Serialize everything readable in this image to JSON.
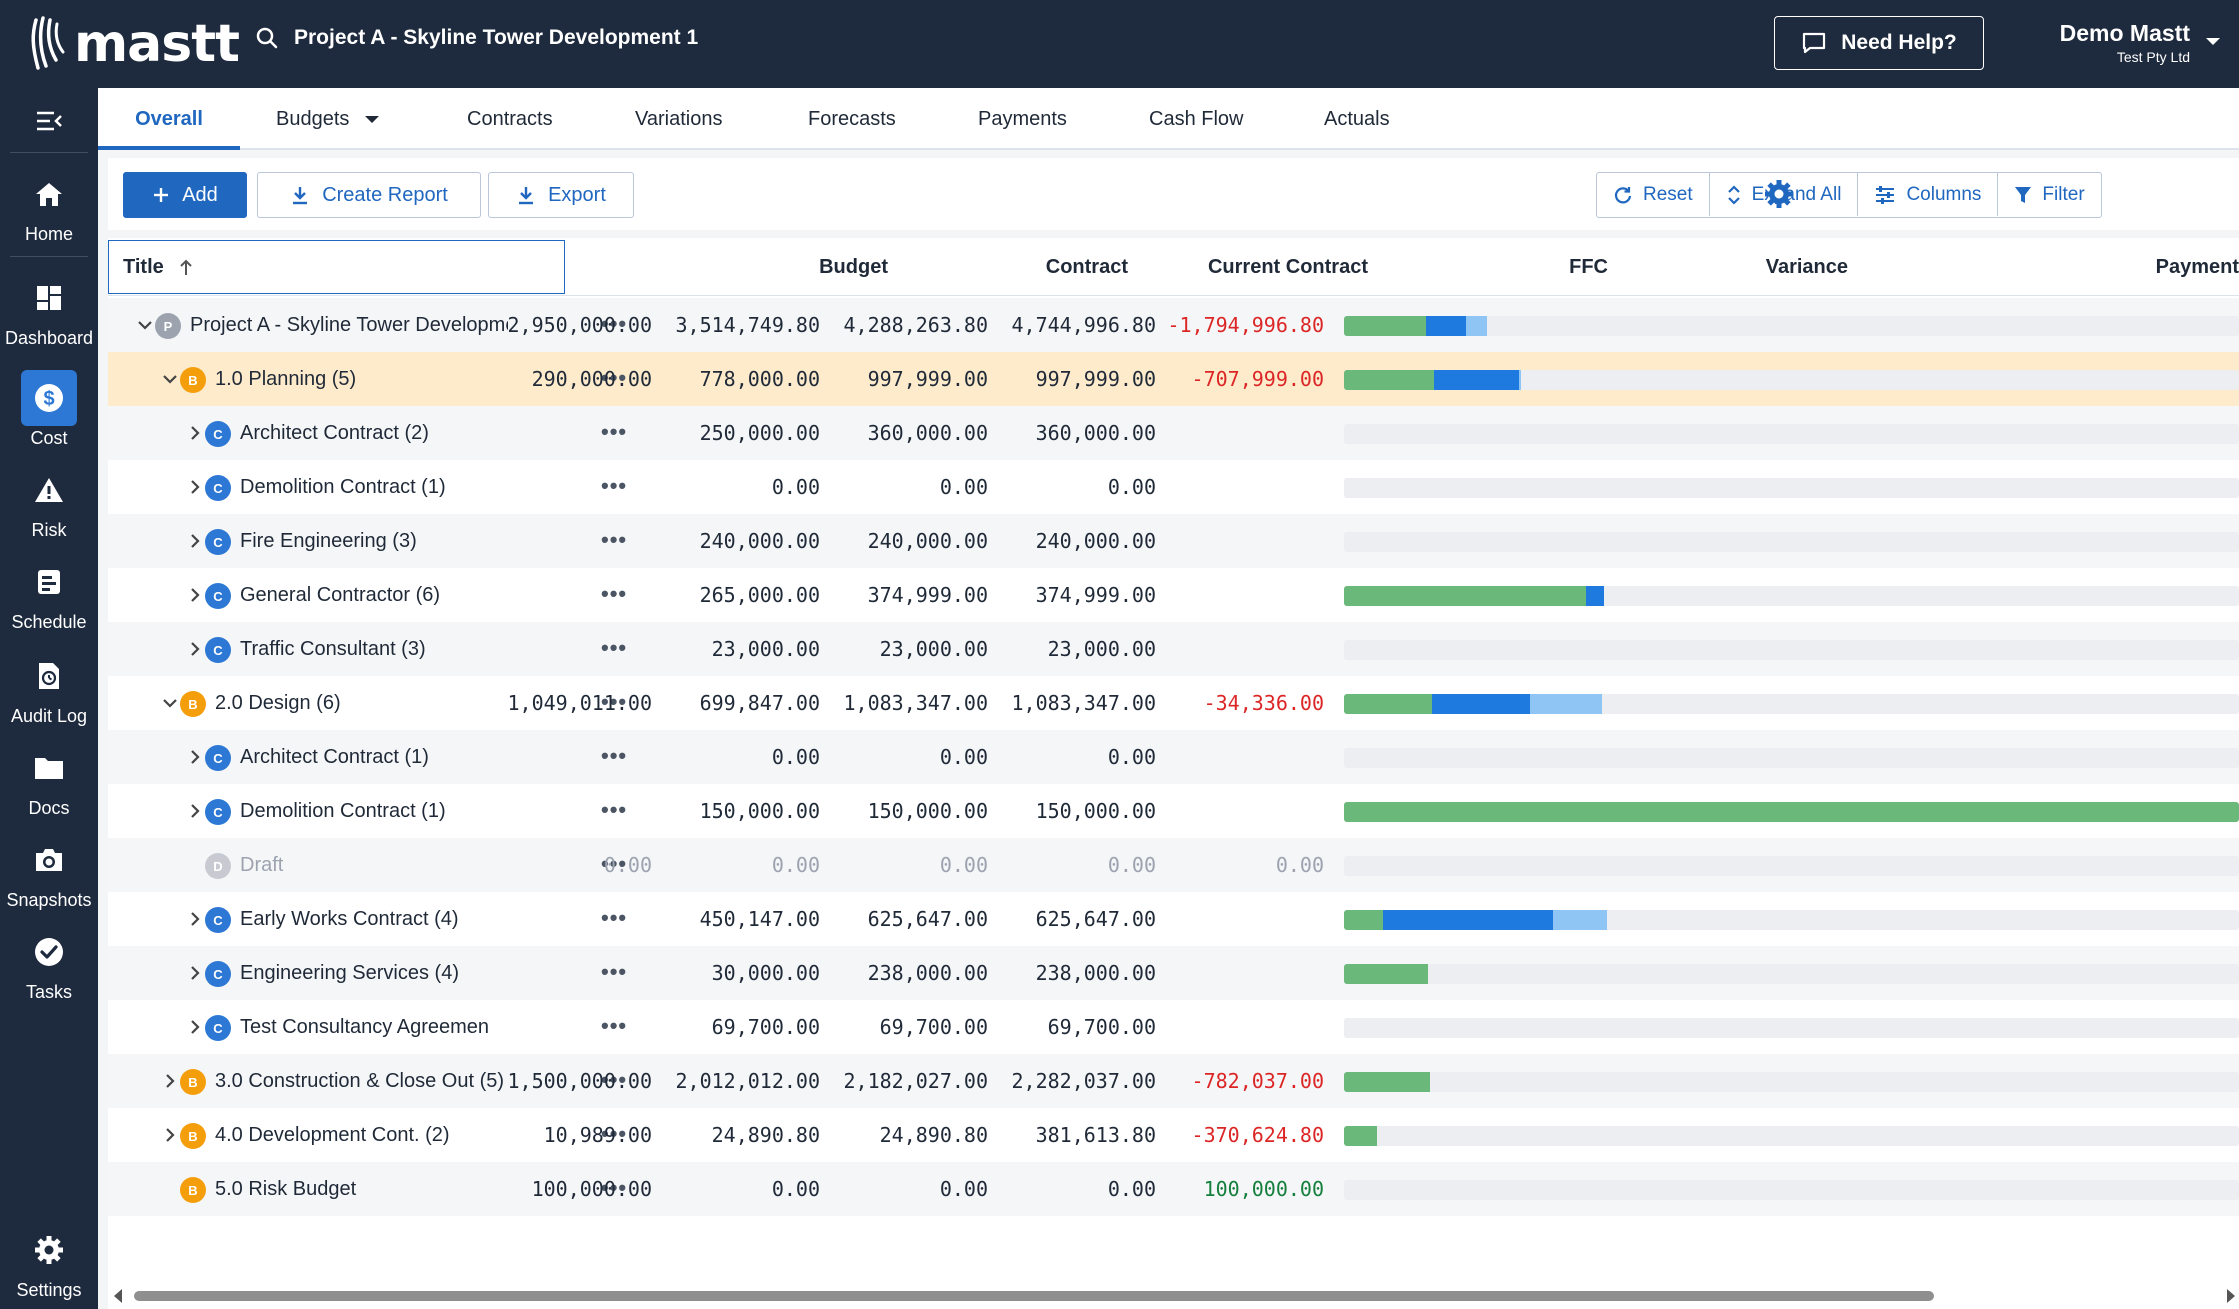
{
  "app": {
    "logo_text": "mastt"
  },
  "header": {
    "project_title": "Project A - Skyline Tower Development 1",
    "help_label": "Need Help?",
    "user_name": "Demo Mastt",
    "user_org": "Test Pty Ltd"
  },
  "sidebar": {
    "items": [
      {
        "label": "Home",
        "icon": "home-icon"
      },
      {
        "label": "Dashboard",
        "icon": "dashboard-icon"
      },
      {
        "label": "Cost",
        "icon": "dollar-icon"
      },
      {
        "label": "Risk",
        "icon": "warning-icon"
      },
      {
        "label": "Schedule",
        "icon": "schedule-icon"
      },
      {
        "label": "Audit Log",
        "icon": "audit-icon"
      },
      {
        "label": "Docs",
        "icon": "folder-icon"
      },
      {
        "label": "Snapshots",
        "icon": "camera-icon"
      },
      {
        "label": "Tasks",
        "icon": "check-circle-icon"
      },
      {
        "label": "Settings",
        "icon": "gear-icon"
      }
    ],
    "active": "Cost"
  },
  "tabs": [
    "Overall",
    "Budgets",
    "Contracts",
    "Variations",
    "Forecasts",
    "Payments",
    "Cash Flow",
    "Actuals"
  ],
  "active_tab": "Overall",
  "toolbar": {
    "add": "Add",
    "create_report": "Create Report",
    "export": "Export",
    "reset": "Reset",
    "expand_all": "Expand All",
    "columns": "Columns",
    "filter": "Filter"
  },
  "columns": {
    "title": "Title",
    "budget": "Budget",
    "contract": "Contract",
    "current_contract": "Current Contract",
    "ffc": "FFC",
    "variance": "Variance",
    "payment": "Payment"
  },
  "colors": {
    "primary": "#2067c0",
    "nav_bg": "#1e2a3d",
    "negative": "#dc2626",
    "positive": "#15803d",
    "highlight_row": "#fdebcc",
    "pay_paid": "#6bb87b",
    "pay_approved": "#1f7ae0",
    "pay_pending": "#8ec5f5"
  },
  "rows": [
    {
      "level": 0,
      "type": "P",
      "title": "Project A - Skyline Tower Developme",
      "chevron": "down",
      "budget": "2,950,000.00",
      "contract": "3,514,749.80",
      "current_contract": "4,288,263.80",
      "ffc": "4,744,996.80",
      "variance": "-1,794,996.80",
      "variance_sign": "neg",
      "pay": [
        0.092,
        0.044,
        0.024
      ]
    },
    {
      "level": 1,
      "type": "B",
      "title": "1.0 Planning  (5)",
      "chevron": "down",
      "highlight": true,
      "budget": "290,000.00",
      "contract": "778,000.00",
      "current_contract": "997,999.00",
      "ffc": "997,999.00",
      "variance": "-707,999.00",
      "variance_sign": "neg",
      "pay": [
        0.1,
        0.096,
        0.002
      ]
    },
    {
      "level": 2,
      "type": "C",
      "title": "Architect Contract  (2)",
      "chevron": "right",
      "budget": "",
      "contract": "250,000.00",
      "current_contract": "360,000.00",
      "ffc": "360,000.00",
      "variance": "",
      "pay": [
        0,
        0,
        0
      ]
    },
    {
      "level": 2,
      "type": "C",
      "title": "Demolition Contract  (1)",
      "chevron": "right",
      "budget": "",
      "contract": "0.00",
      "current_contract": "0.00",
      "ffc": "0.00",
      "variance": "",
      "pay": [
        0,
        0,
        0
      ]
    },
    {
      "level": 2,
      "type": "C",
      "title": "Fire Engineering  (3)",
      "chevron": "right",
      "budget": "",
      "contract": "240,000.00",
      "current_contract": "240,000.00",
      "ffc": "240,000.00",
      "variance": "",
      "pay": [
        0,
        0,
        0
      ]
    },
    {
      "level": 2,
      "type": "C",
      "title": "General Contractor  (6)",
      "chevron": "right",
      "budget": "",
      "contract": "265,000.00",
      "current_contract": "374,999.00",
      "ffc": "374,999.00",
      "variance": "",
      "pay": [
        0.27,
        0.02,
        0
      ]
    },
    {
      "level": 2,
      "type": "C",
      "title": "Traffic Consultant  (3)",
      "chevron": "right",
      "budget": "",
      "contract": "23,000.00",
      "current_contract": "23,000.00",
      "ffc": "23,000.00",
      "variance": "",
      "pay": [
        0,
        0,
        0
      ]
    },
    {
      "level": 1,
      "type": "B",
      "title": "2.0 Design  (6)",
      "chevron": "down",
      "budget": "1,049,011.00",
      "contract": "699,847.00",
      "current_contract": "1,083,347.00",
      "ffc": "1,083,347.00",
      "variance": "-34,336.00",
      "variance_sign": "neg",
      "pay": [
        0.098,
        0.11,
        0.08
      ]
    },
    {
      "level": 2,
      "type": "C",
      "title": "Architect Contract  (1)",
      "chevron": "right",
      "budget": "",
      "contract": "0.00",
      "current_contract": "0.00",
      "ffc": "0.00",
      "variance": "",
      "pay": [
        0,
        0,
        0
      ]
    },
    {
      "level": 2,
      "type": "C",
      "title": "Demolition Contract  (1)",
      "chevron": "right",
      "budget": "",
      "contract": "150,000.00",
      "current_contract": "150,000.00",
      "ffc": "150,000.00",
      "variance": "",
      "pay": [
        1,
        0,
        0
      ]
    },
    {
      "level": 2,
      "type": "D",
      "title": "Draft",
      "chevron": "",
      "muted": true,
      "budget": "0.00",
      "contract": "0.00",
      "current_contract": "0.00",
      "ffc": "0.00",
      "variance": "0.00",
      "variance_sign": "muted",
      "pay": [
        0,
        0,
        0
      ]
    },
    {
      "level": 2,
      "type": "C",
      "title": "Early Works Contract  (4)",
      "chevron": "right",
      "budget": "",
      "contract": "450,147.00",
      "current_contract": "625,647.00",
      "ffc": "625,647.00",
      "variance": "",
      "pay": [
        0.044,
        0.19,
        0.06
      ]
    },
    {
      "level": 2,
      "type": "C",
      "title": "Engineering Services  (4)",
      "chevron": "right",
      "budget": "",
      "contract": "30,000.00",
      "current_contract": "238,000.00",
      "ffc": "238,000.00",
      "variance": "",
      "pay": [
        0.094,
        0,
        0
      ]
    },
    {
      "level": 2,
      "type": "C",
      "title": "Test Consultancy Agreemen",
      "chevron": "right",
      "budget": "",
      "contract": "69,700.00",
      "current_contract": "69,700.00",
      "ffc": "69,700.00",
      "variance": "",
      "pay": [
        0,
        0,
        0
      ]
    },
    {
      "level": 1,
      "type": "B",
      "title": "3.0 Construction & Close Out  (5)",
      "chevron": "right",
      "budget": "1,500,000.00",
      "contract": "2,012,012.00",
      "current_contract": "2,182,027.00",
      "ffc": "2,282,037.00",
      "variance": "-782,037.00",
      "variance_sign": "neg",
      "pay": [
        0.096,
        0,
        0
      ]
    },
    {
      "level": 1,
      "type": "B",
      "title": "4.0 Development Cont.  (2)",
      "chevron": "right",
      "budget": "10,989.00",
      "contract": "24,890.80",
      "current_contract": "24,890.80",
      "ffc": "381,613.80",
      "variance": "-370,624.80",
      "variance_sign": "neg",
      "pay": [
        0.037,
        0,
        0
      ]
    },
    {
      "level": 1,
      "type": "B",
      "title": "5.0 Risk Budget",
      "chevron": "",
      "budget": "100,000.00",
      "contract": "0.00",
      "current_contract": "0.00",
      "ffc": "0.00",
      "variance": "100,000.00",
      "variance_sign": "pos",
      "pay": [
        0,
        0,
        0
      ]
    }
  ]
}
